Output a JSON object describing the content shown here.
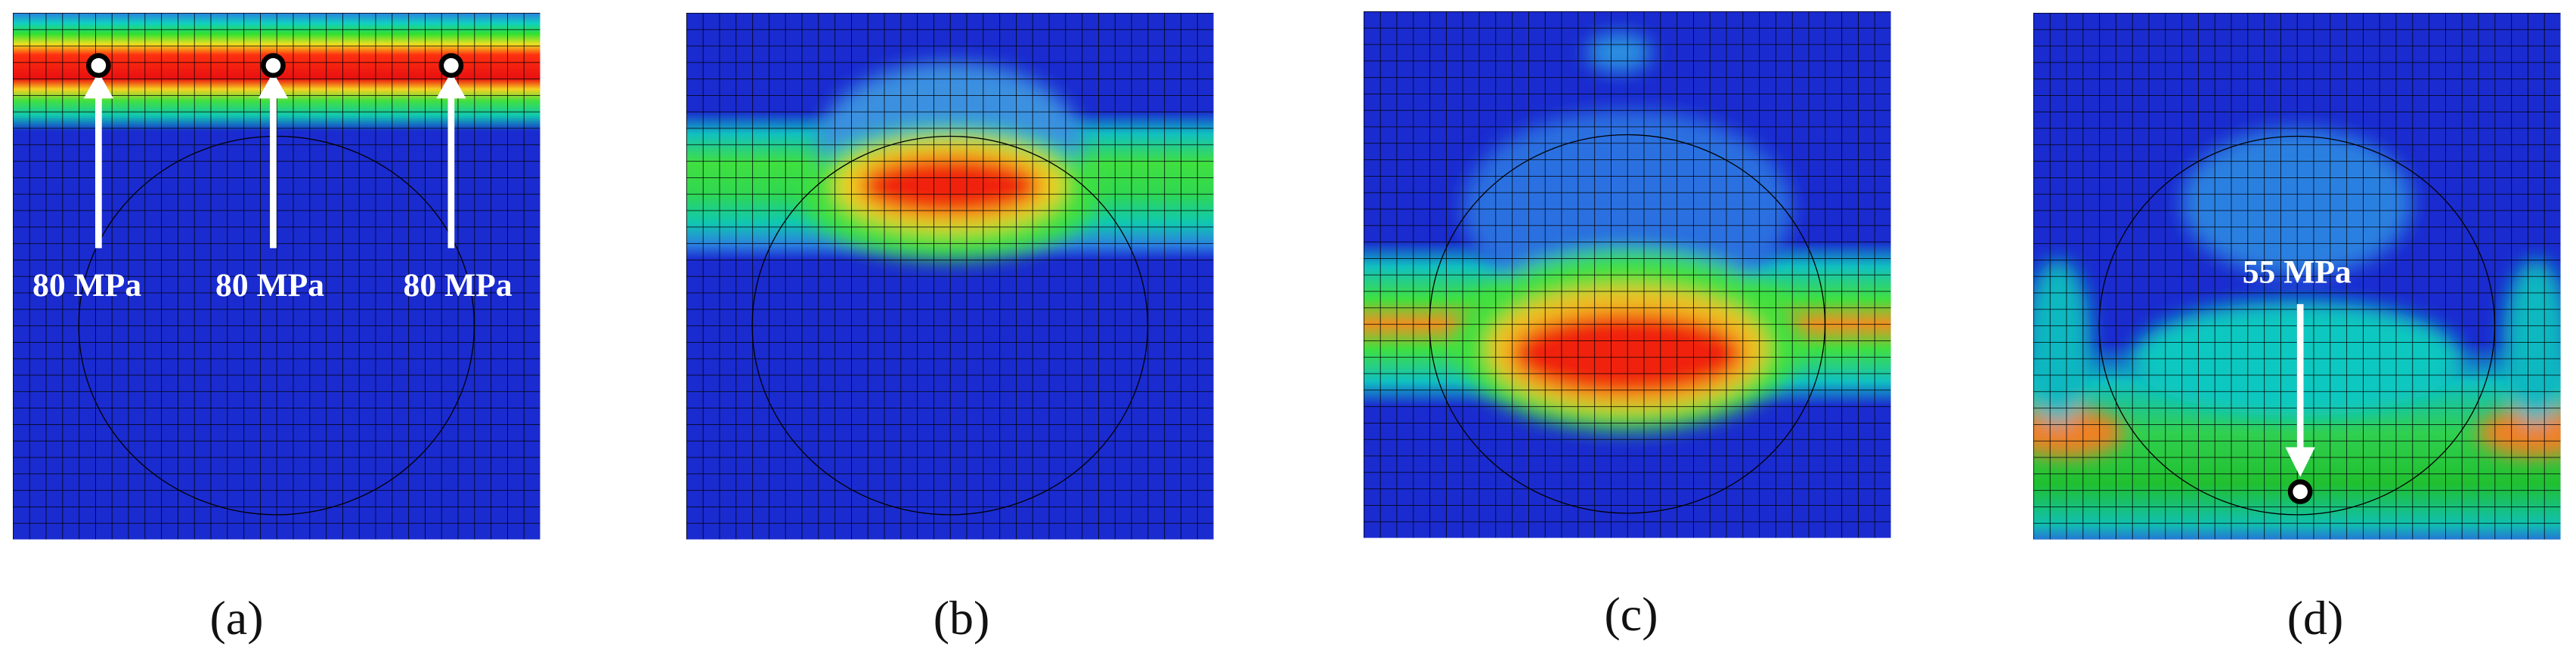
{
  "panels": [
    {
      "label": "(a)",
      "annotations": [
        "80 MPa",
        "80 MPa",
        "80 MPa"
      ]
    },
    {
      "label": "(b)"
    },
    {
      "label": "(c)"
    },
    {
      "label": "(d)",
      "annotations": [
        "55 MPa"
      ]
    }
  ]
}
